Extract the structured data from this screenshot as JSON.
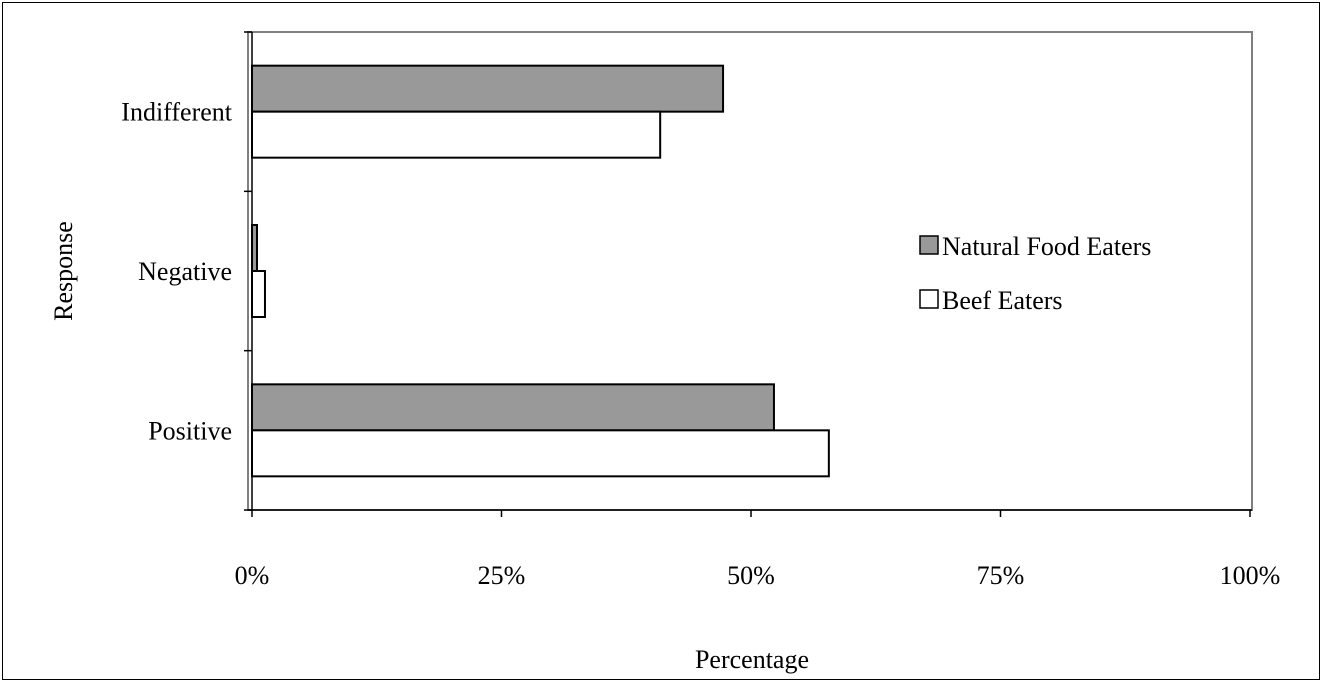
{
  "chart_data": {
    "type": "bar",
    "orientation": "horizontal",
    "categories": [
      "Positive",
      "Negative",
      "Indifferent"
    ],
    "series": [
      {
        "name": "Natural Food Eaters",
        "values": [
          52.3,
          0.5,
          47.2
        ],
        "color": "#999999"
      },
      {
        "name": "Beef Eaters",
        "values": [
          57.8,
          1.3,
          40.9
        ],
        "color": "#ffffff"
      }
    ],
    "x_ticks": [
      "0%",
      "25%",
      "50%",
      "75%",
      "100%"
    ],
    "xlim": [
      0,
      100
    ],
    "xlabel": "Percentage",
    "ylabel": "Response",
    "grid": false,
    "legend_position": "right"
  }
}
